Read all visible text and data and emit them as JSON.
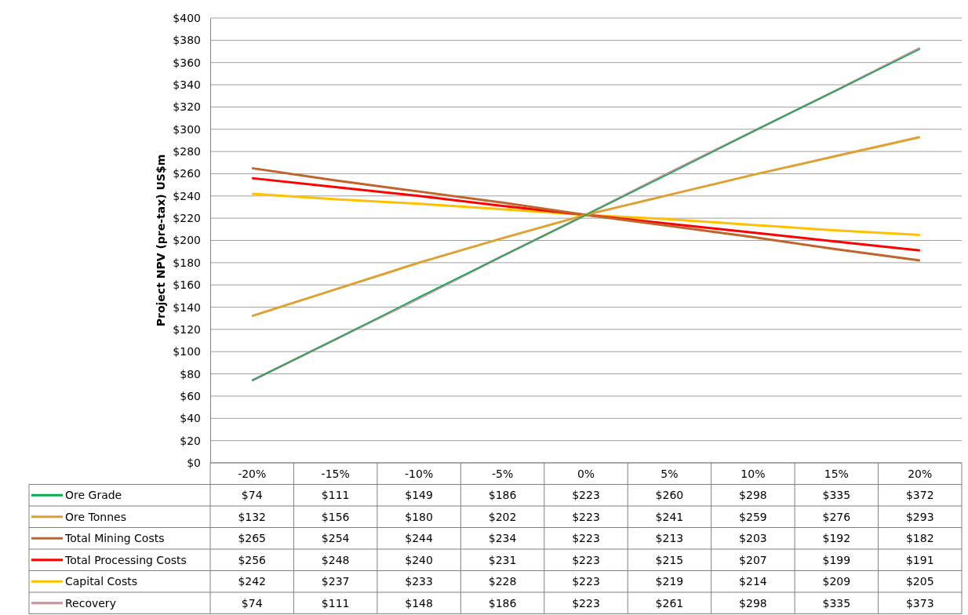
{
  "chart_data": {
    "type": "line",
    "ylabel": "Project NPV (pre-tax) US$m",
    "categories": [
      "-20%",
      "-15%",
      "-10%",
      "-5%",
      "0%",
      "5%",
      "10%",
      "15%",
      "20%"
    ],
    "ylim": [
      0,
      400
    ],
    "yticks": [
      {
        "value": 0,
        "label": "$0"
      },
      {
        "value": 20,
        "label": "$20"
      },
      {
        "value": 40,
        "label": "$40"
      },
      {
        "value": 60,
        "label": "$60"
      },
      {
        "value": 80,
        "label": "$80"
      },
      {
        "value": 100,
        "label": "$100"
      },
      {
        "value": 120,
        "label": "$120"
      },
      {
        "value": 140,
        "label": "$140"
      },
      {
        "value": 160,
        "label": "$160"
      },
      {
        "value": 180,
        "label": "$180"
      },
      {
        "value": 200,
        "label": "$200"
      },
      {
        "value": 220,
        "label": "$220"
      },
      {
        "value": 240,
        "label": "$240"
      },
      {
        "value": 260,
        "label": "$260"
      },
      {
        "value": 280,
        "label": "$280"
      },
      {
        "value": 300,
        "label": "$300"
      },
      {
        "value": 320,
        "label": "$320"
      },
      {
        "value": 340,
        "label": "$340"
      },
      {
        "value": 360,
        "label": "$360"
      },
      {
        "value": 380,
        "label": "$380"
      },
      {
        "value": 400,
        "label": "$400"
      }
    ],
    "grid": "y",
    "legend": "bottom",
    "marker": "none",
    "line_style": "solid",
    "series": [
      {
        "name": "Ore Grade",
        "color": "#00b050",
        "values": [
          74,
          111,
          149,
          186,
          223,
          260,
          298,
          335,
          372
        ],
        "value_labels": [
          "$74",
          "$111",
          "$149",
          "$186",
          "$223",
          "$260",
          "$298",
          "$335",
          "$372"
        ]
      },
      {
        "name": "Ore Tonnes",
        "color": "#e0a030",
        "values": [
          132,
          156,
          180,
          202,
          223,
          241,
          259,
          276,
          293
        ],
        "value_labels": [
          "$132",
          "$156",
          "$180",
          "$202",
          "$223",
          "$241",
          "$259",
          "$276",
          "$293"
        ]
      },
      {
        "name": "Total Mining Costs",
        "color": "#c0642c",
        "values": [
          265,
          254,
          244,
          234,
          223,
          213,
          203,
          192,
          182
        ],
        "value_labels": [
          "$265",
          "$254",
          "$244",
          "$234",
          "$223",
          "$213",
          "$203",
          "$192",
          "$182"
        ]
      },
      {
        "name": "Total Processing Costs",
        "color": "#ff0000",
        "values": [
          256,
          248,
          240,
          231,
          223,
          215,
          207,
          199,
          191
        ],
        "value_labels": [
          "$256",
          "$248",
          "$240",
          "$231",
          "$223",
          "$215",
          "$207",
          "$199",
          "$191"
        ]
      },
      {
        "name": "Capital Costs",
        "color": "#ffc000",
        "values": [
          242,
          237,
          233,
          228,
          223,
          219,
          214,
          209,
          205
        ],
        "value_labels": [
          "$242",
          "$237",
          "$233",
          "$228",
          "$223",
          "$219",
          "$214",
          "$209",
          "$205"
        ]
      },
      {
        "name": "Recovery",
        "color": "#c8909a",
        "values": [
          74,
          111,
          148,
          186,
          223,
          261,
          298,
          335,
          373
        ],
        "value_labels": [
          "$74",
          "$111",
          "$148",
          "$186",
          "$223",
          "$261",
          "$298",
          "$335",
          "$373"
        ]
      }
    ]
  }
}
